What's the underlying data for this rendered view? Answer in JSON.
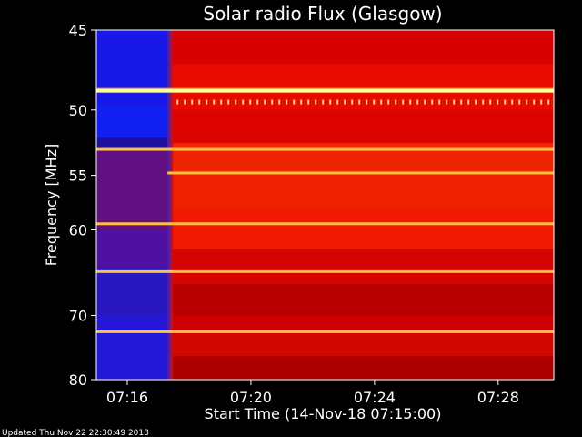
{
  "chart_data": {
    "type": "heatmap",
    "title": "Solar radio Flux (Glasgow)",
    "xlabel": "Start Time (14-Nov-18 07:15:00)",
    "ylabel": "Frequency [MHz]",
    "x_range_min": [
      15.0,
      29.8
    ],
    "y_range_mhz": [
      45,
      80
    ],
    "y_ticks": [
      45,
      50,
      55,
      60,
      70,
      80
    ],
    "x_ticks": [
      {
        "label": "07:16",
        "minute": 16
      },
      {
        "label": "07:20",
        "minute": 20
      },
      {
        "label": "07:24",
        "minute": 24
      },
      {
        "label": "07:28",
        "minute": 28
      }
    ],
    "quiet_background_until_min": 17.3,
    "bright_lines_mhz": [
      {
        "freq": 48.7,
        "intensity": "saturated",
        "from_min": 15.0
      },
      {
        "freq": 52.9,
        "intensity": "bright",
        "from_min": 15.0
      },
      {
        "freq": 54.8,
        "intensity": "bright",
        "from_min": 17.3
      },
      {
        "freq": 59.4,
        "intensity": "bright",
        "from_min": 15.0
      },
      {
        "freq": 64.5,
        "intensity": "bright",
        "from_min": 15.0
      },
      {
        "freq": 72.3,
        "intensity": "bright",
        "from_min": 15.0
      }
    ],
    "colors": {
      "low": "#1a1ae0",
      "mid": "#b00000",
      "high": "#ff3010",
      "peak": "#ffff80"
    }
  },
  "footer": {
    "updated": "Updated Thu Nov 22 22:30:49 2018"
  }
}
